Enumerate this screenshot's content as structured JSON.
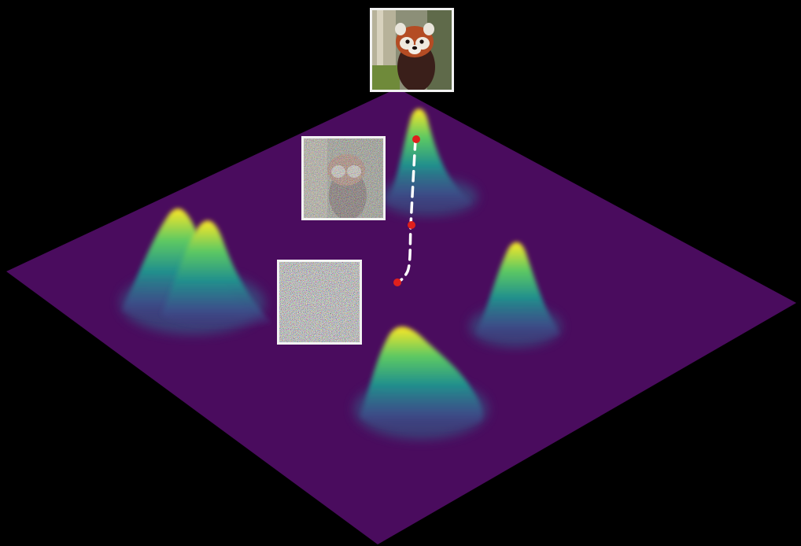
{
  "scene": {
    "background_color": "#000000",
    "plane_color": "#4a0c5e",
    "colormap": [
      "#440154",
      "#3b528b",
      "#21908d",
      "#5dc962",
      "#fde725"
    ]
  },
  "density_peaks": [
    {
      "name": "left-twin-peak-a",
      "relative_height": 0.62
    },
    {
      "name": "left-twin-peak-b",
      "relative_height": 0.68
    },
    {
      "name": "top-center-peak",
      "relative_height": 0.95
    },
    {
      "name": "right-peak",
      "relative_height": 0.55
    },
    {
      "name": "bottom-center-peak",
      "relative_height": 0.5
    }
  ],
  "trajectory": {
    "style": "dashed white",
    "point_color": "#e0201c",
    "num_points": 3
  },
  "images": [
    {
      "name": "red-panda-clean-image",
      "noise_level": 0
    },
    {
      "name": "red-panda-partially-noised-image",
      "noise_level": 0.5
    },
    {
      "name": "pure-noise-image",
      "noise_level": 1
    }
  ]
}
